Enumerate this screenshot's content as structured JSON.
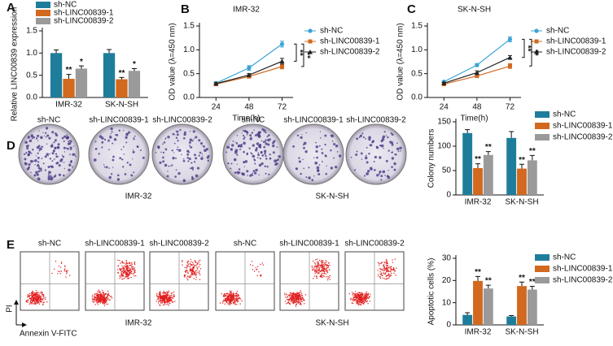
{
  "chart_data": [
    {
      "type": "bar",
      "panel": "A",
      "y_label": "Relative LINC00839 expression",
      "categories": [
        "IMR-32",
        "SK-N-SH"
      ],
      "series": [
        {
          "name": "sh-NC",
          "color": "#1f7d9c",
          "values": [
            1.0,
            1.0
          ],
          "errors": [
            0.07,
            0.08
          ]
        },
        {
          "name": "sh-LINC00839-1",
          "color": "#d2691e",
          "values": [
            0.42,
            0.41
          ],
          "errors": [
            0.1,
            0.04
          ],
          "significance": [
            "**",
            "**"
          ]
        },
        {
          "name": "sh-LINC00839-2",
          "color": "#9a9a9a",
          "values": [
            0.65,
            0.6
          ],
          "errors": [
            0.06,
            0.05
          ],
          "significance": [
            "*",
            "*"
          ]
        }
      ],
      "ylim": [
        0,
        1.5
      ],
      "yticks": [
        {
          "value": 0,
          "label": "0.0"
        },
        {
          "value": 0.5,
          "label": "0.5"
        },
        {
          "value": 1,
          "label": "1.0"
        },
        {
          "value": 1.5,
          "label": "1.5"
        }
      ]
    },
    {
      "type": "line",
      "panel": "B",
      "title": "IMR-32",
      "y_label": "OD value (λ=450 nm)",
      "x_label": "Time(h)",
      "x": [
        24,
        48,
        72
      ],
      "series": [
        {
          "name": "sh-NC",
          "color": "#3aa3d6",
          "marker": "circle",
          "values": [
            0.3,
            0.62,
            1.12
          ],
          "errors": [
            0.03,
            0.05,
            0.06
          ]
        },
        {
          "name": "sh-LINC00839-1",
          "color": "#d2691e",
          "marker": "square",
          "values": [
            0.28,
            0.44,
            0.65
          ],
          "errors": [
            0.02,
            0.03,
            0.05
          ]
        },
        {
          "name": "sh-LINC00839-2",
          "color": "#222222",
          "marker": "triangle",
          "values": [
            0.29,
            0.47,
            0.76
          ],
          "errors": [
            0.02,
            0.03,
            0.06
          ]
        }
      ],
      "significance": [
        "**",
        "**"
      ],
      "xlim": [
        12,
        80
      ],
      "xticks": [
        24,
        48,
        72
      ],
      "ylim": [
        0,
        1.5
      ],
      "yticks": [
        {
          "value": 0,
          "label": "0.0"
        },
        {
          "value": 0.5,
          "label": "0.5"
        },
        {
          "value": 1,
          "label": "1.0"
        },
        {
          "value": 1.5,
          "label": "1.5"
        }
      ]
    },
    {
      "type": "line",
      "panel": "C",
      "title": "SK-N-SH",
      "y_label": "OD value (λ=450 nm)",
      "x_label": "Time(h)",
      "x": [
        24,
        48,
        72
      ],
      "series": [
        {
          "name": "sh-NC",
          "color": "#3aa3d6",
          "marker": "circle",
          "values": [
            0.33,
            0.68,
            1.22
          ],
          "errors": [
            0.02,
            0.03,
            0.05
          ]
        },
        {
          "name": "sh-LINC00839-1",
          "color": "#d2691e",
          "marker": "square",
          "values": [
            0.28,
            0.45,
            0.66
          ],
          "errors": [
            0.02,
            0.03,
            0.05
          ]
        },
        {
          "name": "sh-LINC00839-2",
          "color": "#222222",
          "marker": "triangle",
          "values": [
            0.3,
            0.52,
            0.84
          ],
          "errors": [
            0.02,
            0.04,
            0.04
          ]
        }
      ],
      "significance": [
        "**",
        "**"
      ],
      "xlim": [
        12,
        80
      ],
      "xticks": [
        24,
        48,
        72
      ],
      "ylim": [
        0,
        1.5
      ],
      "yticks": [
        {
          "value": 0,
          "label": "0.0"
        },
        {
          "value": 0.5,
          "label": "0.5"
        },
        {
          "value": 1,
          "label": "1.0"
        },
        {
          "value": 1.5,
          "label": "1.5"
        }
      ]
    },
    {
      "type": "bar",
      "y_label": "Colony numbers",
      "categories": [
        "IMR-32",
        "SK-N-SH"
      ],
      "series": [
        {
          "name": "sh-NC",
          "color": "#1f7d9c",
          "values": [
            127,
            117
          ],
          "errors": [
            7,
            13
          ]
        },
        {
          "name": "sh-LINC00839-1",
          "color": "#d2691e",
          "values": [
            55,
            54
          ],
          "errors": [
            9,
            9
          ],
          "significance": [
            "**",
            "**"
          ]
        },
        {
          "name": "sh-LINC00839-2",
          "color": "#9a9a9a",
          "values": [
            82,
            71
          ],
          "errors": [
            7,
            10
          ],
          "significance": [
            "**",
            "**"
          ]
        }
      ],
      "ylim": [
        0,
        150
      ],
      "yticks": [
        0,
        50,
        100,
        150
      ]
    },
    {
      "type": "bar",
      "y_label": "Apoptotic cells (%)",
      "categories": [
        "IMR-32",
        "SK-N-SH"
      ],
      "series": [
        {
          "name": "sh-NC",
          "color": "#1f7d9c",
          "values": [
            4.5,
            3.8
          ],
          "errors": [
            1.0,
            0.4
          ]
        },
        {
          "name": "sh-LINC00839-1",
          "color": "#d2691e",
          "values": [
            19.8,
            17.5
          ],
          "errors": [
            2.0,
            1.8
          ],
          "significance": [
            "**",
            "**"
          ]
        },
        {
          "name": "sh-LINC00839-2",
          "color": "#9a9a9a",
          "values": [
            16.4,
            15.9
          ],
          "errors": [
            1.5,
            1.5
          ],
          "significance": [
            "**",
            "**"
          ]
        }
      ],
      "ylim": [
        0,
        30
      ],
      "yticks": [
        0,
        10,
        20,
        30
      ]
    }
  ],
  "colony_assay": {
    "panel": "D",
    "plate_labels": [
      "sh-NC",
      "sh-LINC00839-1",
      "sh-LINC00839-2",
      "sh-NC",
      "sh-LINC00839-1",
      "sh-LINC00839-2"
    ],
    "cell_lines": [
      "IMR-32",
      "SK-N-SH"
    ]
  },
  "flow_cytometry": {
    "panel": "E",
    "plot_labels": [
      "sh-NC",
      "sh-LINC00839-1",
      "sh-LINC00839-2",
      "sh-NC",
      "sh-LINC00839-1",
      "sh-LINC00839-2"
    ],
    "cell_lines": [
      "IMR-32",
      "SK-N-SH"
    ],
    "y_axis_label": "PI",
    "x_axis_label": "Annexin V-FITC"
  }
}
